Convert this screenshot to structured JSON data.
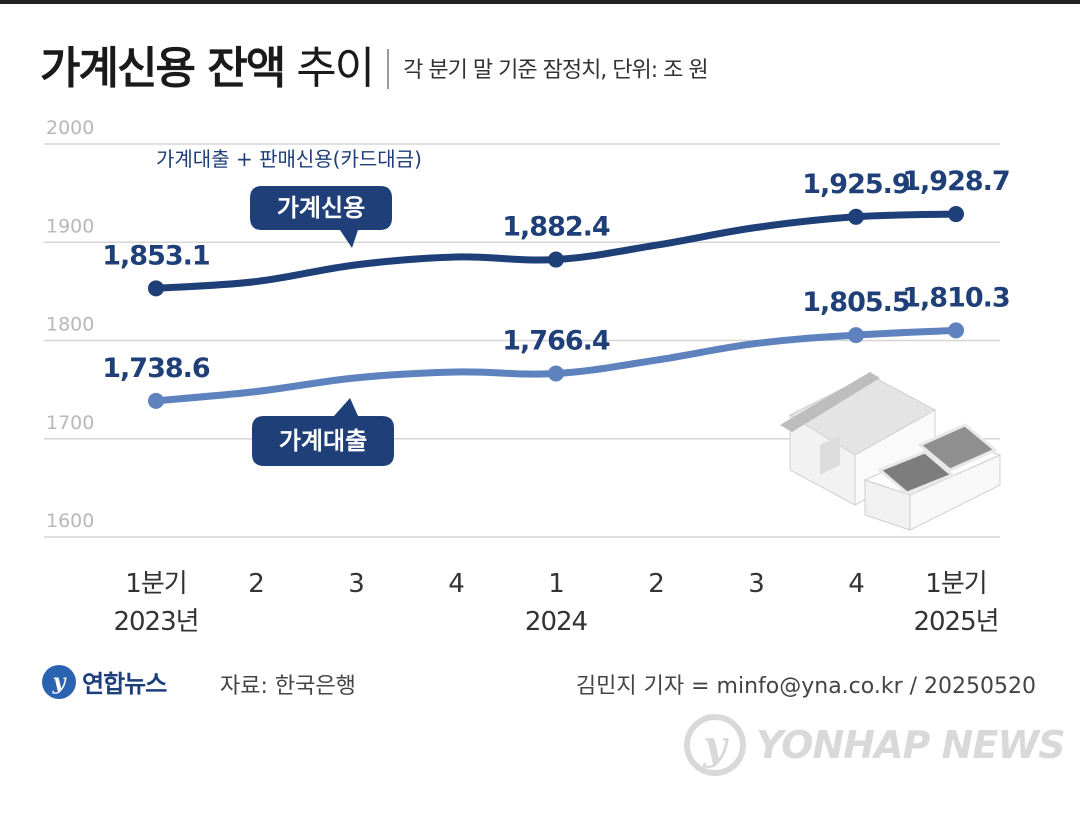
{
  "header": {
    "title_bold": "가계신용 잔액",
    "title_light": "추이",
    "note": "각 분기 말 기준 잠정치, 단위: 조 원"
  },
  "chart_data": {
    "type": "line",
    "subtitle": "가계대출 + 판매신용(카드대금)",
    "ylim": [
      1600,
      2000
    ],
    "yticks": [
      "1600",
      "1700",
      "1800",
      "1900",
      "2000"
    ],
    "x_labels": [
      [
        "1분기",
        "2023년"
      ],
      [
        "2"
      ],
      [
        "3"
      ],
      [
        "4"
      ],
      [
        "1",
        "2024"
      ],
      [
        "2"
      ],
      [
        "3"
      ],
      [
        "4"
      ],
      [
        "1분기",
        "2025년"
      ]
    ],
    "series": [
      {
        "name": "가계신용",
        "color": "#1f3f78",
        "values": [
          1853.1,
          1860,
          1877,
          1885,
          1882.4,
          1897,
          1915,
          1925.9,
          1928.7
        ],
        "labels": [
          "1,853.1",
          "",
          "",
          "",
          "1,882.4",
          "",
          "",
          "1,925.9",
          "1,928.7"
        ],
        "markers": [
          0,
          4,
          7,
          8
        ]
      },
      {
        "name": "가계대출",
        "color": "#5e82bd",
        "values": [
          1738.6,
          1748,
          1762,
          1768,
          1766.4,
          1780,
          1797,
          1805.5,
          1810.3
        ],
        "labels": [
          "1,738.6",
          "",
          "",
          "",
          "1,766.4",
          "",
          "",
          "1,805.5",
          "1,810.3"
        ],
        "markers": [
          0,
          4,
          7,
          8
        ]
      }
    ]
  },
  "footer": {
    "logo_mark": "y",
    "logo_text": "연합뉴스",
    "source": "자료: 한국은행",
    "credit": "김민지 기자 = minfo@yna.co.kr / 20250520"
  },
  "watermark": {
    "mark": "y",
    "text": "YONHAP NEWS"
  }
}
